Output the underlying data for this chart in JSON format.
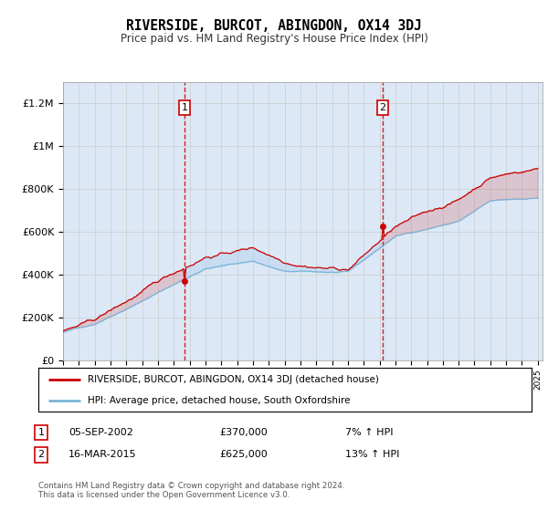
{
  "title": "RIVERSIDE, BURCOT, ABINGDON, OX14 3DJ",
  "subtitle": "Price paid vs. HM Land Registry's House Price Index (HPI)",
  "ylim": [
    0,
    1300000
  ],
  "yticks": [
    0,
    200000,
    400000,
    600000,
    800000,
    1000000,
    1200000
  ],
  "ytick_labels": [
    "£0",
    "£200K",
    "£400K",
    "£600K",
    "£800K",
    "£1M",
    "£1.2M"
  ],
  "transaction1": {
    "date": "05-SEP-2002",
    "price": 370000,
    "price_str": "£370,000",
    "pct": "7%",
    "label": "1",
    "year": 2002.67
  },
  "transaction2": {
    "date": "16-MAR-2015",
    "price": 625000,
    "price_str": "£625,000",
    "pct": "13%",
    "label": "2",
    "year": 2015.2
  },
  "hpi_color": "#7ab4d8",
  "price_color": "#cc0000",
  "vline_color": "#cc0000",
  "grid_color": "#cccccc",
  "background_color": "#ffffff",
  "plot_bg": "#dce8f5",
  "legend_label_red": "RIVERSIDE, BURCOT, ABINGDON, OX14 3DJ (detached house)",
  "legend_label_blue": "HPI: Average price, detached house, South Oxfordshire",
  "footnote": "Contains HM Land Registry data © Crown copyright and database right 2024.\nThis data is licensed under the Open Government Licence v3.0."
}
